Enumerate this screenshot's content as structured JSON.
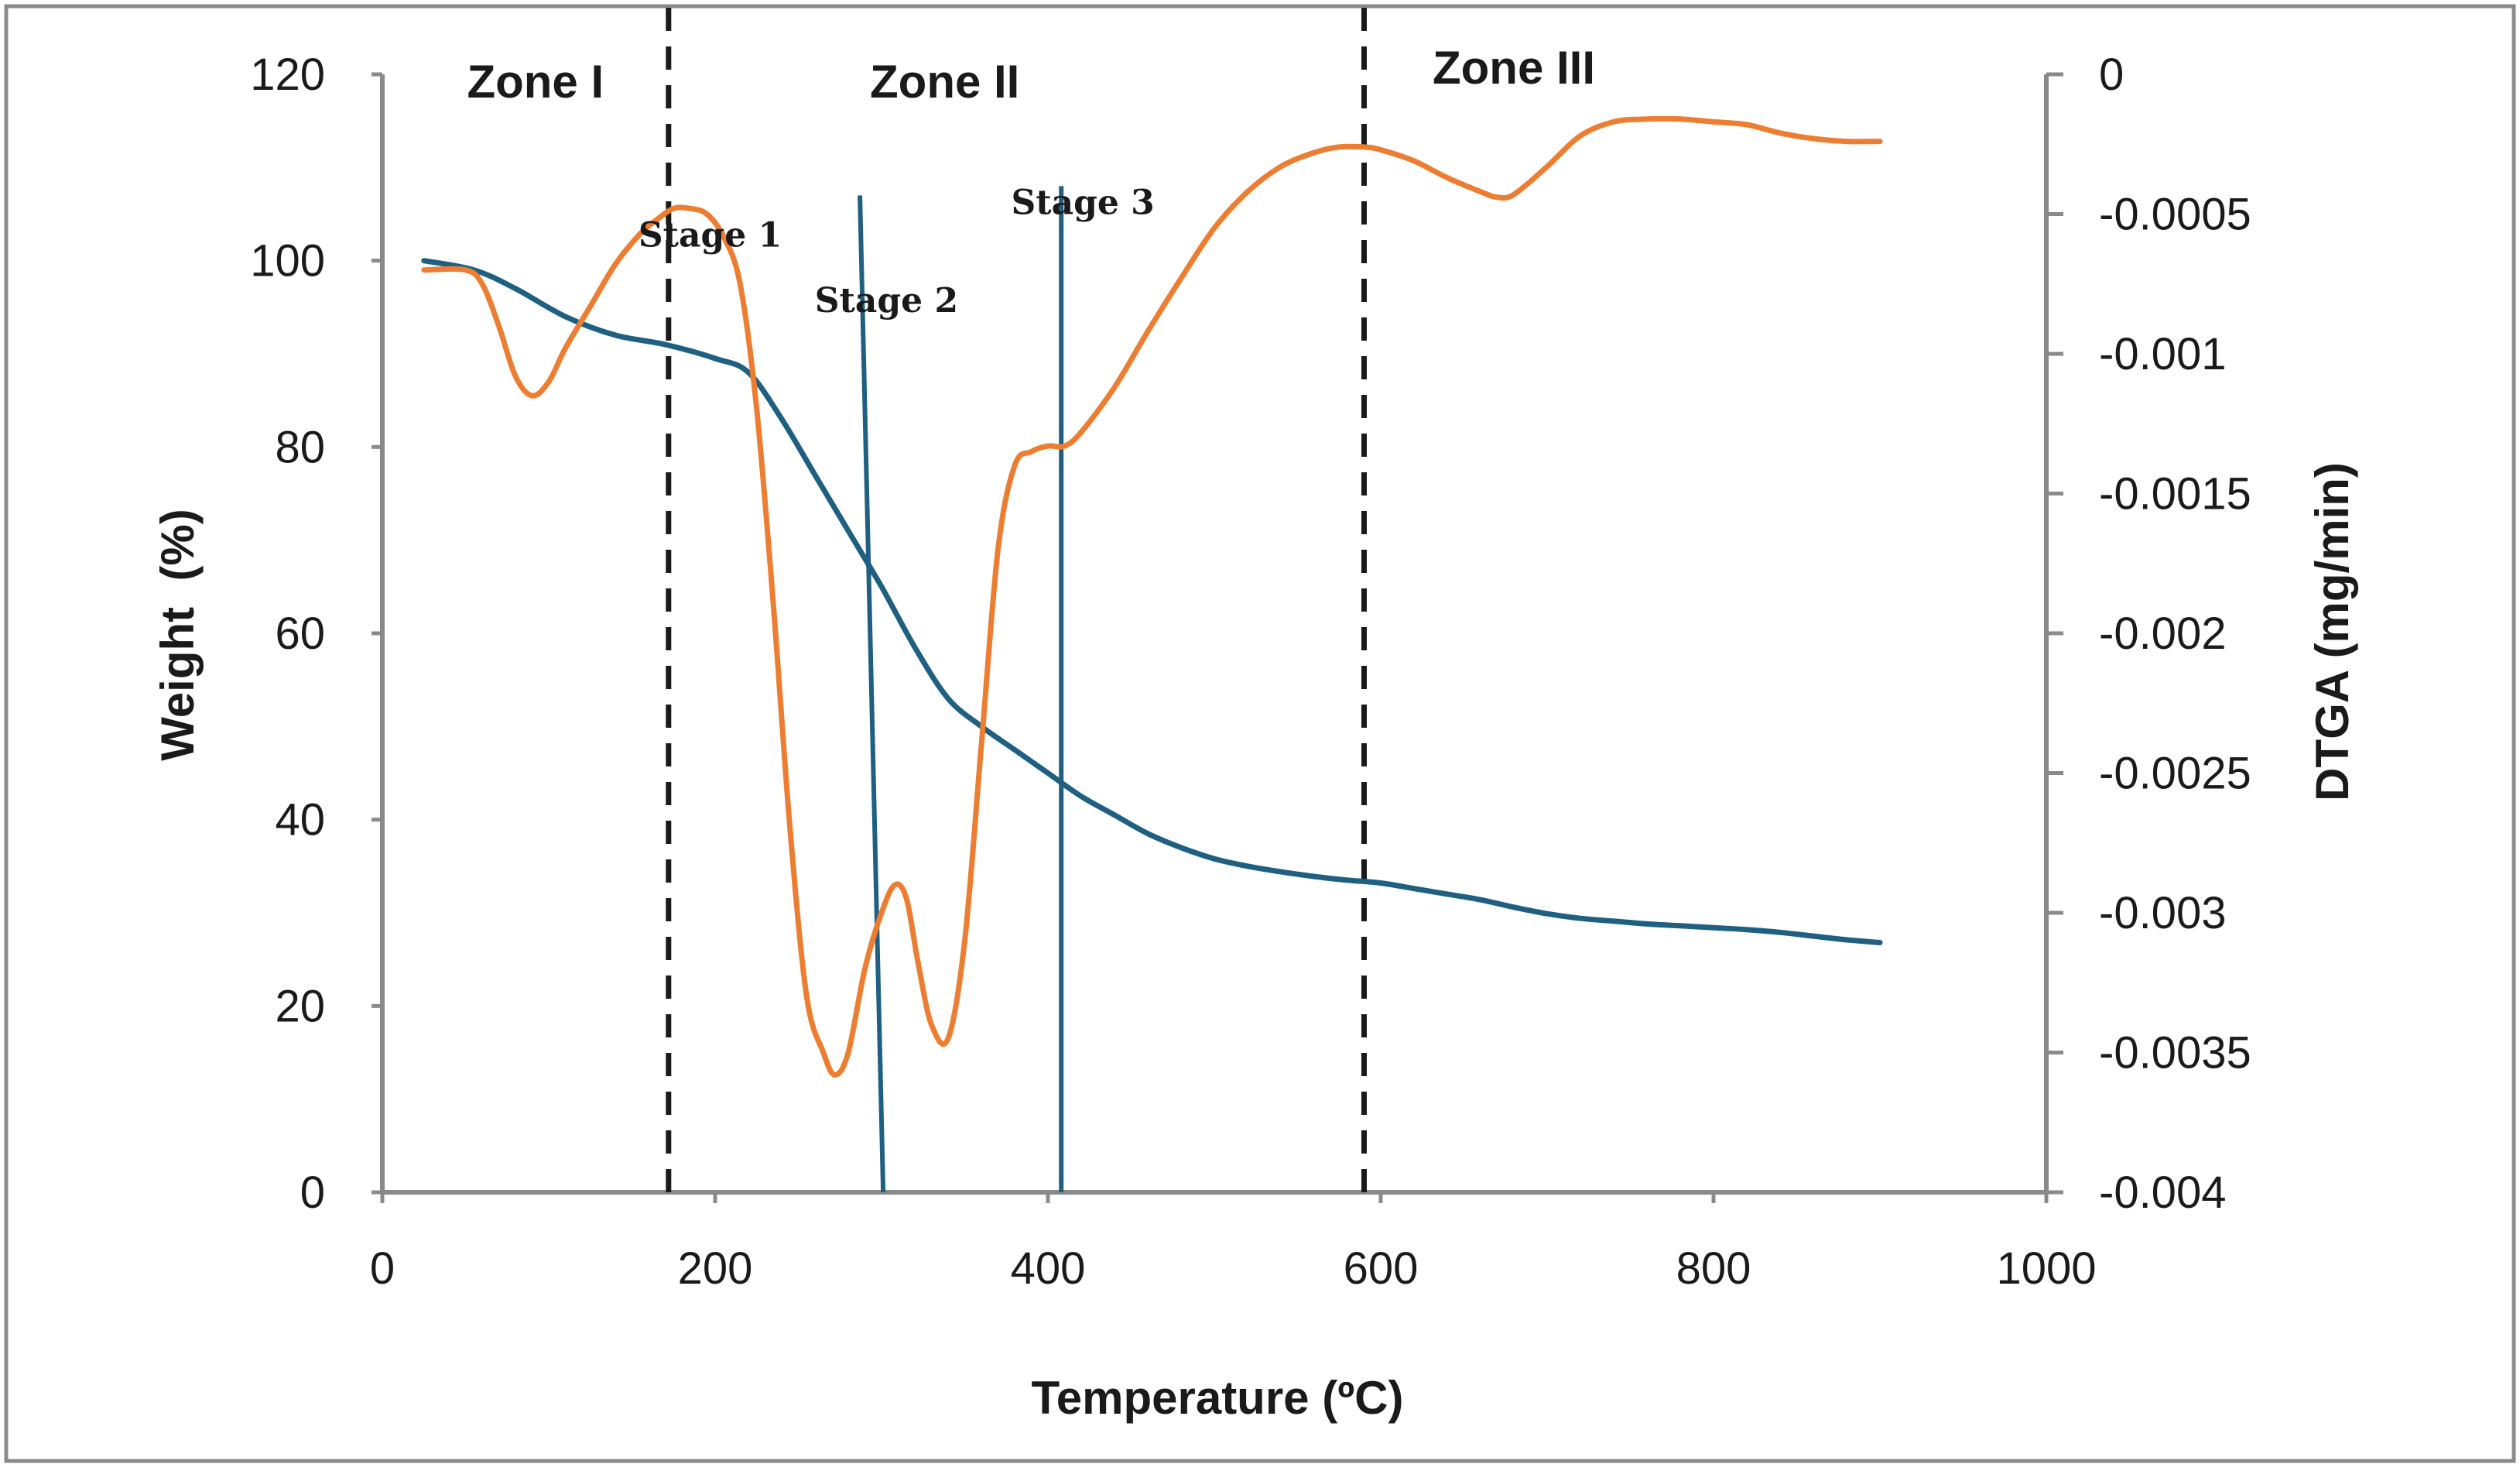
{
  "chart_data": {
    "type": "line",
    "title": "",
    "xlabel": "Temperature (ºC)",
    "ylabel": "Weight  (%)",
    "y2label": "DTGA (mg/min)",
    "xlim": [
      0,
      1000
    ],
    "ylim": [
      0,
      120
    ],
    "y2lim": [
      -0.004,
      0
    ],
    "xticks": [
      0,
      200,
      400,
      600,
      800,
      1000
    ],
    "yticks": [
      0,
      20,
      40,
      60,
      80,
      100,
      120
    ],
    "y2ticks": [
      0,
      -0.0005,
      -0.001,
      -0.0015,
      -0.002,
      -0.0025,
      -0.003,
      -0.0035,
      -0.004
    ],
    "y2tick_labels": [
      "0",
      "-0.0005",
      "-0.001",
      "-0.0015",
      "-0.002",
      "-0.0025",
      "-0.003",
      "-0.0035",
      "-0.004"
    ],
    "grid": false,
    "series": [
      {
        "name": "Weight",
        "axis": "left",
        "color": "#1f6082",
        "x": [
          25,
          55,
          80,
          110,
          140,
          170,
          200,
          220,
          240,
          260,
          280,
          300,
          320,
          340,
          360,
          380,
          400,
          420,
          440,
          460,
          480,
          500,
          520,
          540,
          560,
          580,
          600,
          620,
          640,
          660,
          680,
          700,
          720,
          740,
          760,
          780,
          800,
          820,
          840,
          860,
          880,
          900
        ],
        "values": [
          100,
          99,
          97,
          94,
          92,
          91,
          89.5,
          88,
          83,
          77,
          71,
          65,
          58.5,
          53,
          50,
          47.5,
          45,
          42.5,
          40.5,
          38.5,
          37,
          35.8,
          35,
          34.4,
          33.9,
          33.5,
          33.2,
          32.6,
          32,
          31.4,
          30.6,
          29.9,
          29.4,
          29.1,
          28.8,
          28.6,
          28.4,
          28.2,
          27.9,
          27.5,
          27.1,
          26.8
        ]
      },
      {
        "name": "DTGA",
        "axis": "right",
        "color": "#ed7d31",
        "x": [
          25,
          50,
          60,
          70,
          80,
          90,
          100,
          110,
          125,
          140,
          155,
          165,
          175,
          185,
          195,
          205,
          215,
          225,
          235,
          245,
          255,
          265,
          272,
          280,
          290,
          300,
          308,
          315,
          322,
          330,
          340,
          350,
          360,
          370,
          380,
          390,
          400,
          410,
          420,
          440,
          460,
          480,
          500,
          520,
          540,
          560,
          575,
          590,
          600,
          620,
          640,
          660,
          670,
          680,
          700,
          720,
          740,
          760,
          780,
          800,
          820,
          840,
          860,
          880,
          900
        ],
        "values": [
          -0.0007,
          -0.0007,
          -0.00075,
          -0.0009,
          -0.00108,
          -0.00115,
          -0.0011,
          -0.00098,
          -0.00083,
          -0.00068,
          -0.00057,
          -0.00052,
          -0.00048,
          -0.00048,
          -0.0005,
          -0.00058,
          -0.00075,
          -0.0012,
          -0.0019,
          -0.0027,
          -0.0033,
          -0.0035,
          -0.00358,
          -0.0035,
          -0.0032,
          -0.003,
          -0.0029,
          -0.00295,
          -0.00318,
          -0.0034,
          -0.00345,
          -0.0031,
          -0.0024,
          -0.0017,
          -0.0014,
          -0.00135,
          -0.00133,
          -0.00133,
          -0.00128,
          -0.00112,
          -0.00092,
          -0.00073,
          -0.00055,
          -0.00042,
          -0.00033,
          -0.00028,
          -0.00026,
          -0.00026,
          -0.00027,
          -0.00031,
          -0.00037,
          -0.00042,
          -0.00044,
          -0.00043,
          -0.00033,
          -0.00022,
          -0.00017,
          -0.00016,
          -0.00016,
          -0.00017,
          -0.00018,
          -0.00021,
          -0.00023,
          -0.00024,
          -0.00024
        ]
      }
    ],
    "reference_lines": [
      {
        "name": "zone-divider-1",
        "x": 172,
        "style": "dashed",
        "color": "#1a1a1a"
      },
      {
        "name": "zone-divider-2",
        "x": 590,
        "style": "dashed",
        "color": "#1a1a1a"
      },
      {
        "name": "stage-line-1",
        "x1": 287,
        "y1": 107,
        "x2": 301,
        "y2": 0,
        "style": "solid",
        "color": "#1f6082"
      },
      {
        "name": "stage-line-2",
        "x1": 408,
        "y1": 108,
        "x2": 408,
        "y2": 0,
        "style": "solid",
        "color": "#1f6082"
      }
    ],
    "annotations": {
      "zones": [
        {
          "label": "Zone I",
          "x": 92,
          "y": 117.5
        },
        {
          "label": "Zone II",
          "x": 338,
          "y": 117.5
        },
        {
          "label": "Zone III",
          "x": 680,
          "y": 119
        }
      ],
      "stages": [
        {
          "label": "Stage 1",
          "x": 197,
          "y": 101.5
        },
        {
          "label": "Stage 2",
          "x": 303,
          "y": 94.5
        },
        {
          "label": "Stage 3",
          "x": 421,
          "y": 105
        }
      ]
    }
  }
}
